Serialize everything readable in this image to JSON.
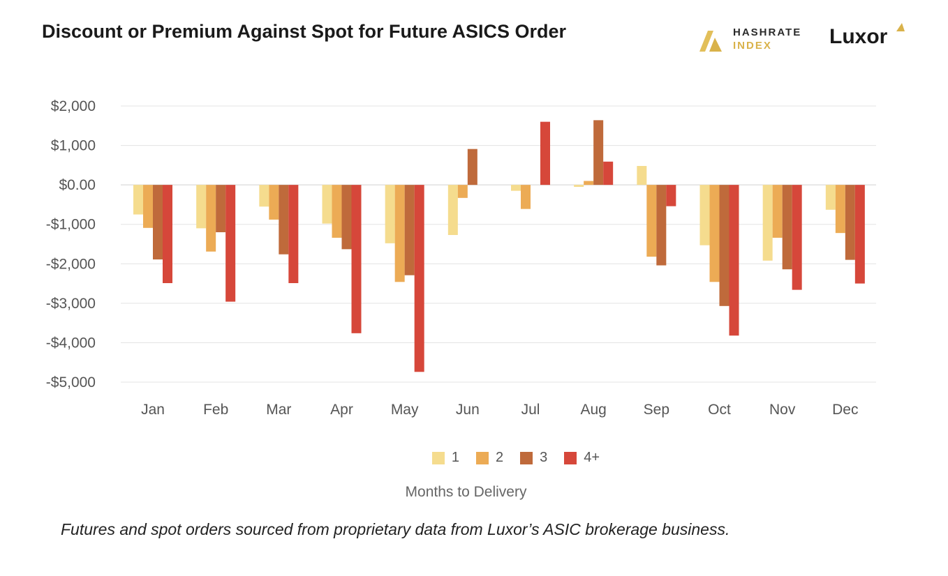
{
  "chart_data": {
    "type": "bar",
    "title": "Discount or Premium Against Spot for Future ASICS Order",
    "categories": [
      "Jan",
      "Feb",
      "Mar",
      "Apr",
      "May",
      "Jun",
      "Jul",
      "Aug",
      "Sep",
      "Oct",
      "Nov",
      "Dec"
    ],
    "series": [
      {
        "name": "1",
        "color": "#f5dc8e",
        "values": [
          -750,
          -1100,
          -550,
          -980,
          -1480,
          -1270,
          -150,
          -50,
          480,
          -1530,
          -1920,
          -630
        ]
      },
      {
        "name": "2",
        "color": "#ecab55",
        "values": [
          -1090,
          -1690,
          -880,
          -1340,
          -2460,
          -330,
          -610,
          100,
          -1820,
          -2460,
          -1340,
          -1220
        ]
      },
      {
        "name": "3",
        "color": "#bf6a3b",
        "values": [
          -1890,
          -1200,
          -1760,
          -1630,
          -2290,
          910,
          0,
          1640,
          -2040,
          -3070,
          -2140,
          -1900
        ]
      },
      {
        "name": "4+",
        "color": "#d6473a",
        "values": [
          -2490,
          -2960,
          -2490,
          -3760,
          -4740,
          0,
          1600,
          590,
          -540,
          -3820,
          -2660,
          -2500
        ]
      }
    ],
    "yticks": [
      2000,
      1000,
      0,
      -1000,
      -2000,
      -3000,
      -4000,
      -5000
    ],
    "ytick_labels": [
      "$2,000",
      "$1,000",
      "$0.00",
      "-$1,000",
      "-$2,000",
      "-$3,000",
      "-$4,000",
      "-$5,000"
    ],
    "ylim": [
      -5000,
      2000
    ],
    "xlabel": "Months to Delivery",
    "ylabel": "",
    "legend_position": "bottom",
    "grid": true
  },
  "branding": {
    "hashrate_line1": "HASHRATE",
    "hashrate_line2": "INDEX",
    "luxor": "Luxor"
  },
  "caption": "Futures and spot orders sourced from proprietary data from Luxor’s ASIC brokerage business."
}
